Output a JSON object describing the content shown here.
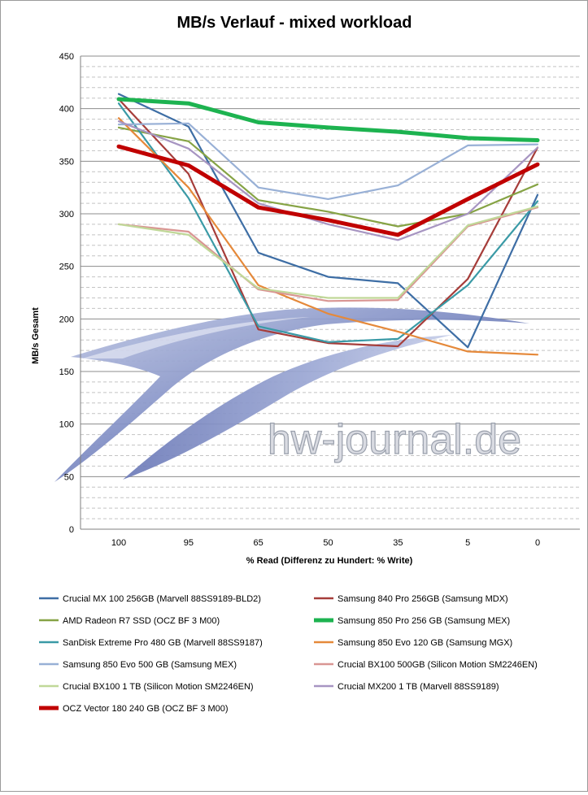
{
  "chart_data": {
    "type": "line",
    "title": "MB/s Verlauf - mixed workload",
    "xlabel": "% Read (Differenz zu Hundert: % Write)",
    "ylabel": "MB/s Gesamt",
    "categories": [
      "100",
      "95",
      "65",
      "50",
      "35",
      "5",
      "0"
    ],
    "ylim": [
      0,
      450
    ],
    "yticks": [
      0,
      50,
      100,
      150,
      200,
      250,
      300,
      350,
      400,
      450
    ],
    "grid": true,
    "legend_position": "bottom",
    "watermark": "hw-journal.de",
    "series": [
      {
        "name": "Crucial MX 100 256GB (Marvell 88SS9189-BLD2)",
        "color": "#3e6ea5",
        "emphasis": false,
        "values": [
          414,
          383,
          263,
          240,
          234,
          173,
          318
        ]
      },
      {
        "name": "Samsung 840 Pro 256GB (Samsung MDX)",
        "color": "#a63d3a",
        "emphasis": false,
        "values": [
          409,
          338,
          190,
          177,
          174,
          238,
          363
        ]
      },
      {
        "name": "AMD Radeon R7 SSD (OCZ BF 3 M00)",
        "color": "#86a345",
        "emphasis": false,
        "values": [
          382,
          369,
          313,
          302,
          288,
          300,
          328
        ]
      },
      {
        "name": "Samsung 850 Pro 256 GB (Samsung MEX)",
        "color": "#1db350",
        "emphasis": true,
        "values": [
          409,
          405,
          387,
          382,
          378,
          372,
          370
        ]
      },
      {
        "name": "SanDisk Extreme Pro 480 GB (Marvell 88SS9187)",
        "color": "#3a9aa6",
        "emphasis": false,
        "values": [
          405,
          315,
          193,
          178,
          181,
          232,
          312
        ]
      },
      {
        "name": "Samsung 850 Evo 120 GB (Samsung MGX)",
        "color": "#e5893a",
        "emphasis": false,
        "values": [
          391,
          325,
          232,
          205,
          188,
          169,
          166
        ]
      },
      {
        "name": "Samsung 850 Evo 500 GB (Samsung MEX)",
        "color": "#98b0d6",
        "emphasis": false,
        "values": [
          385,
          386,
          325,
          314,
          327,
          365,
          366
        ]
      },
      {
        "name": "Crucial BX100 500GB (Silicon Motion SM2246EN)",
        "color": "#d99693",
        "emphasis": false,
        "values": [
          290,
          283,
          228,
          217,
          218,
          288,
          306
        ]
      },
      {
        "name": "Crucial BX100 1 TB (Silicon Motion SM2246EN)",
        "color": "#c0d898",
        "emphasis": false,
        "values": [
          290,
          280,
          229,
          220,
          220,
          289,
          307
        ]
      },
      {
        "name": "Crucial MX200 1 TB (Marvell 88SS9189)",
        "color": "#a795c2",
        "emphasis": false,
        "values": [
          388,
          362,
          310,
          290,
          275,
          300,
          363
        ]
      },
      {
        "name": "OCZ Vector 180 240 GB (OCZ BF 3 M00)",
        "color": "#c00000",
        "emphasis": true,
        "values": [
          364,
          346,
          306,
          294,
          280,
          314,
          347
        ]
      }
    ]
  }
}
